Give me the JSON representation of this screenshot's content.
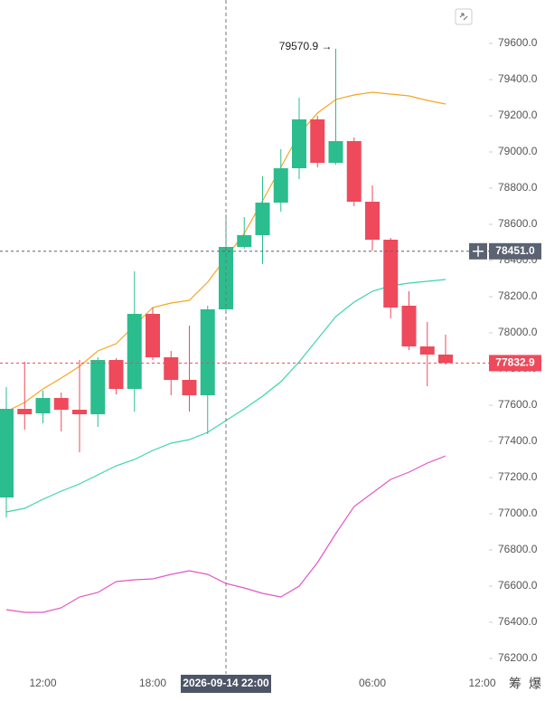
{
  "chart_data": {
    "type": "candlestick",
    "categories": [
      null,
      null,
      "12:00",
      null,
      null,
      null,
      null,
      null,
      "18:00",
      null,
      null,
      null,
      null,
      null,
      null,
      null,
      null,
      null,
      null,
      null,
      "06:00",
      null,
      null,
      null,
      null,
      null,
      "12:00"
    ],
    "open": [
      77090,
      77580,
      77555,
      77640,
      77575,
      77550,
      77850,
      77690,
      78105,
      77865,
      77740,
      77655,
      78130,
      78475,
      78540,
      78720,
      78910,
      79180,
      78940,
      79060,
      78725,
      78515,
      78150,
      77925,
      77880,
      null,
      null
    ],
    "high": [
      77700,
      77840,
      77680,
      77670,
      77850,
      77865,
      77860,
      78340,
      78140,
      77900,
      78040,
      78150,
      78655,
      78640,
      78865,
      79015,
      79300,
      79200,
      79570.9,
      79080,
      78815,
      78525,
      78230,
      78060,
      77990,
      null,
      null
    ],
    "low": [
      76980,
      77465,
      77500,
      77455,
      77340,
      77480,
      77660,
      77565,
      77850,
      77655,
      77565,
      77440,
      78115,
      78465,
      78380,
      78670,
      78850,
      78915,
      78930,
      78700,
      78455,
      78080,
      77905,
      77705,
      77825,
      null,
      null
    ],
    "close": [
      77580,
      77550,
      77640,
      77575,
      77550,
      77850,
      77690,
      78105,
      77865,
      77740,
      77655,
      78130,
      78475,
      78540,
      78720,
      78910,
      79180,
      78940,
      79060,
      78725,
      78515,
      78140,
      77925,
      77880,
      77832.9,
      null,
      null
    ],
    "up_color": "#2bbd8e",
    "down_color": "#ee4a5b",
    "series": [
      {
        "color": "#f5a623",
        "values": [
          77565,
          77615,
          77690,
          77750,
          77815,
          77900,
          77940,
          78040,
          78140,
          78165,
          78180,
          78280,
          78415,
          78550,
          78730,
          78915,
          79100,
          79215,
          79290,
          79315,
          79330,
          79320,
          79310,
          79285,
          79265,
          null,
          null
        ]
      },
      {
        "color": "#3ed3ae",
        "values": [
          77010,
          77030,
          77080,
          77125,
          77165,
          77215,
          77265,
          77300,
          77350,
          77390,
          77410,
          77450,
          77515,
          77580,
          77650,
          77730,
          77840,
          77965,
          78090,
          78170,
          78230,
          78260,
          78275,
          78285,
          78295,
          null,
          null
        ]
      },
      {
        "color": "#e356c6",
        "values": [
          76470,
          76455,
          76455,
          76480,
          76540,
          76565,
          76625,
          76635,
          76640,
          76665,
          76685,
          76665,
          76615,
          76590,
          76560,
          76540,
          76600,
          76730,
          76890,
          77040,
          77115,
          77190,
          77230,
          77280,
          77320,
          null,
          null
        ]
      }
    ],
    "ylim": [
      76115,
      79840
    ],
    "yticks": [
      {
        "value": 76200,
        "label": "76200.0"
      },
      {
        "value": 76400,
        "label": "76400.0"
      },
      {
        "value": 76600,
        "label": "76600.0"
      },
      {
        "value": 76800,
        "label": "76800.0"
      },
      {
        "value": 77000,
        "label": "77000.0"
      },
      {
        "value": 77200,
        "label": "77200.0"
      },
      {
        "value": 77400,
        "label": "77400.0"
      },
      {
        "value": 77600,
        "label": "77600.0"
      },
      {
        "value": 77800,
        "label": "77800.0"
      },
      {
        "value": 78000,
        "label": "78000.0"
      },
      {
        "value": 78200,
        "label": "78200.0"
      },
      {
        "value": 78400,
        "label": "78400.0"
      },
      {
        "value": 78600,
        "label": "78600.0"
      },
      {
        "value": 78800,
        "label": "78800.0"
      },
      {
        "value": 79000,
        "label": "79000.0"
      },
      {
        "value": 79200,
        "label": "79200.0"
      },
      {
        "value": 79400,
        "label": "79400.0"
      },
      {
        "value": 79600,
        "label": "79600.0"
      }
    ],
    "price_lines": [
      {
        "value": 78451.0,
        "label": "78451.0",
        "color": "#5b6272"
      },
      {
        "value": 77832.9,
        "label": "77832.9",
        "color": "#ee4a5b"
      }
    ],
    "annotations": [
      {
        "text": "79570.9 →"
      }
    ],
    "crosshair_label": "2026-09-14 22:00",
    "corner_icons": [
      "筹",
      "爆"
    ]
  }
}
